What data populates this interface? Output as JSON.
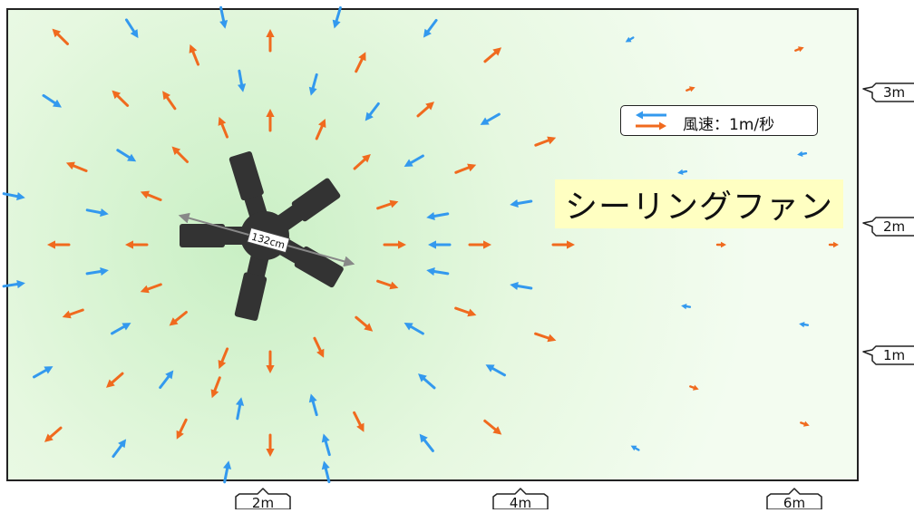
{
  "title": "シーリングファン",
  "legend": {
    "label": "風速：1m/秒",
    "colors": {
      "outflow": "#f06a1e",
      "inflow": "#3399ee"
    }
  },
  "fan": {
    "diameter_label": "132cm",
    "blade_count": 5,
    "color": "#333333"
  },
  "axes": {
    "x_ticks": [
      "2m",
      "4m",
      "6m"
    ],
    "y_ticks": [
      "3m",
      "2m",
      "1m"
    ]
  },
  "colors": {
    "floor": "#eefbe8",
    "floor_center": "#c9efc4",
    "border": "#222222",
    "diameter_line": "#888888"
  }
}
